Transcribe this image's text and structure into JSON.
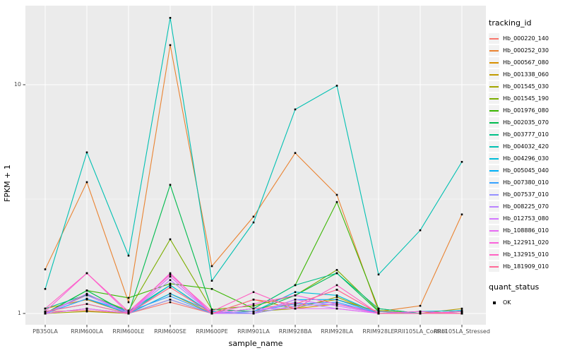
{
  "chart_data": {
    "type": "line",
    "title": "",
    "xlabel": "sample_name",
    "ylabel": "FPKM + 1",
    "y_scale": "log10",
    "grid": true,
    "panel_bg": "#ebebeb",
    "grid_color": "#ffffff",
    "point_color": "#000000",
    "axis_text_color": "#4d4d4d",
    "y_ticks": [
      {
        "label": "1",
        "value": 1
      },
      {
        "label": "10",
        "value": 10
      }
    ],
    "y_minor_ticks": [
      3.162
    ],
    "ylim": [
      0.93,
      22
    ],
    "legend_position": "right",
    "categories": [
      "PB350LA",
      "RRIM600LA",
      "RRIM600LE",
      "RRIM600SE",
      "RRIM600PE",
      "RRIM901LA",
      "RRIM928BA",
      "RRIM928LA",
      "RRIM928LE",
      "RRII105LA_Control",
      "RRII105LA_Stressed"
    ],
    "series": [
      {
        "name": "Hb_000220_140",
        "color": "#F8766D",
        "values": [
          1.02,
          1.03,
          1.0,
          1.12,
          1.0,
          1.05,
          1.1,
          1.27,
          1.0,
          1.0,
          1.0
        ]
      },
      {
        "name": "Hb_000252_030",
        "color": "#EA8331",
        "values": [
          1.56,
          3.75,
          1.12,
          14.9,
          1.61,
          2.65,
          5.03,
          3.3,
          1.02,
          1.08,
          2.71
        ]
      },
      {
        "name": "Hb_000567_080",
        "color": "#D89000",
        "values": [
          1.05,
          1.15,
          1.0,
          1.3,
          1.0,
          1.15,
          1.05,
          1.1,
          1.0,
          1.02,
          1.0
        ]
      },
      {
        "name": "Hb_001338_060",
        "color": "#C09B00",
        "values": [
          1.0,
          1.05,
          1.0,
          1.22,
          1.0,
          1.0,
          1.08,
          1.15,
          1.02,
          1.0,
          1.05
        ]
      },
      {
        "name": "Hb_001545_030",
        "color": "#A3A500",
        "values": [
          1.0,
          1.02,
          1.0,
          1.15,
          1.0,
          1.02,
          1.05,
          1.18,
          1.0,
          1.0,
          1.0
        ]
      },
      {
        "name": "Hb_001545_190",
        "color": "#7CAE00",
        "values": [
          1.0,
          1.21,
          1.03,
          2.11,
          1.04,
          1.08,
          1.2,
          1.55,
          1.03,
          1.0,
          1.02
        ]
      },
      {
        "name": "Hb_001976_080",
        "color": "#39B600",
        "values": [
          1.0,
          1.26,
          1.17,
          1.35,
          1.28,
          1.05,
          1.33,
          3.07,
          1.05,
          1.0,
          1.0
        ]
      },
      {
        "name": "Hb_002035_070",
        "color": "#00BB4E",
        "values": [
          1.0,
          1.26,
          1.0,
          3.65,
          1.04,
          1.02,
          1.2,
          1.5,
          1.02,
          1.0,
          1.02
        ]
      },
      {
        "name": "Hb_003777_010",
        "color": "#00C087",
        "values": [
          1.05,
          1.21,
          1.02,
          1.33,
          1.0,
          1.05,
          1.33,
          1.5,
          1.05,
          1.0,
          1.0
        ]
      },
      {
        "name": "Hb_004032_420",
        "color": "#00C0B2",
        "values": [
          1.28,
          5.06,
          1.79,
          19.6,
          1.39,
          2.5,
          7.8,
          9.9,
          1.48,
          2.31,
          4.6
        ]
      },
      {
        "name": "Hb_004296_030",
        "color": "#00BCD8",
        "values": [
          1.02,
          1.1,
          1.0,
          1.33,
          1.0,
          1.02,
          1.24,
          1.2,
          1.0,
          1.02,
          1.03
        ]
      },
      {
        "name": "Hb_005045_040",
        "color": "#00B0F6",
        "values": [
          1.0,
          1.16,
          1.0,
          1.22,
          1.02,
          1.0,
          1.15,
          1.15,
          1.0,
          1.0,
          1.02
        ]
      },
      {
        "name": "Hb_007380_010",
        "color": "#35A2FF",
        "values": [
          1.0,
          1.16,
          1.02,
          1.19,
          1.0,
          1.02,
          1.1,
          1.12,
          1.0,
          1.0,
          1.0
        ]
      },
      {
        "name": "Hb_007537_010",
        "color": "#9590FF",
        "values": [
          1.0,
          1.05,
          1.0,
          1.15,
          1.0,
          1.0,
          1.08,
          1.1,
          1.02,
          1.0,
          1.0
        ]
      },
      {
        "name": "Hb_008225_070",
        "color": "#B983FF",
        "values": [
          1.0,
          1.2,
          1.0,
          1.4,
          1.0,
          1.02,
          1.12,
          1.05,
          1.0,
          1.0,
          1.0
        ]
      },
      {
        "name": "Hb_012753_080",
        "color": "#D376FF",
        "values": [
          1.0,
          1.22,
          1.0,
          1.45,
          1.0,
          1.0,
          1.15,
          1.08,
          1.0,
          1.0,
          1.0
        ]
      },
      {
        "name": "Hb_108886_010",
        "color": "#E76BF3",
        "values": [
          1.0,
          1.05,
          1.0,
          1.45,
          1.0,
          1.05,
          1.05,
          1.05,
          1.0,
          1.0,
          1.0
        ]
      },
      {
        "name": "Hb_122911_020",
        "color": "#FA62DB",
        "values": [
          1.02,
          1.5,
          1.0,
          1.5,
          1.0,
          1.1,
          1.2,
          1.1,
          1.0,
          1.02,
          1.0
        ]
      },
      {
        "name": "Hb_132915_010",
        "color": "#FF61C3",
        "values": [
          1.05,
          1.5,
          1.02,
          1.48,
          1.02,
          1.24,
          1.05,
          1.33,
          1.0,
          1.0,
          1.02
        ]
      },
      {
        "name": "Hb_181909_010",
        "color": "#FF6A98",
        "values": [
          1.02,
          1.1,
          1.0,
          1.3,
          1.0,
          1.15,
          1.1,
          1.27,
          1.0,
          1.0,
          1.0
        ]
      }
    ],
    "legend": {
      "color_title": "tracking_id",
      "shape_title": "quant_status",
      "shape_items": [
        {
          "label": "OK"
        }
      ]
    }
  }
}
